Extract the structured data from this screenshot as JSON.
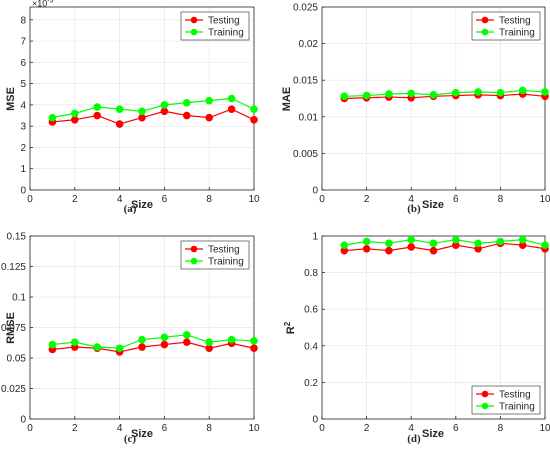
{
  "colors": {
    "testing": "#ff0000",
    "training": "#00ff00",
    "axis": "#262626"
  },
  "chart_data": [
    {
      "type": "line",
      "caption": "(a)",
      "xlabel": "Size",
      "ylabel": "MSE",
      "exponent_label": "×10",
      "exponent_power": "-3",
      "xlim": [
        0,
        10
      ],
      "ylim": [
        0,
        8.6
      ],
      "xticks": [
        0,
        2,
        4,
        6,
        8,
        10
      ],
      "xtick_labels": [
        "0",
        "2",
        "4",
        "6",
        "8",
        "10"
      ],
      "yticks": [
        0,
        1,
        2,
        3,
        4,
        5,
        6,
        7,
        8
      ],
      "ytick_labels": [
        "0",
        "1",
        "2",
        "3",
        "4",
        "5",
        "6",
        "7",
        "8"
      ],
      "legend_position": "top-right",
      "grid": true,
      "x": [
        1,
        2,
        3,
        4,
        5,
        6,
        7,
        8,
        9,
        10
      ],
      "series": [
        {
          "name": "Testing",
          "color": "#ff0000",
          "values": [
            3.2,
            3.3,
            3.5,
            3.1,
            3.4,
            3.7,
            3.5,
            3.4,
            3.8,
            3.3
          ]
        },
        {
          "name": "Training",
          "color": "#00ff00",
          "values": [
            3.4,
            3.6,
            3.9,
            3.8,
            3.7,
            4.0,
            4.1,
            4.2,
            4.3,
            3.8
          ]
        }
      ]
    },
    {
      "type": "line",
      "caption": "(b)",
      "xlabel": "Size",
      "ylabel": "MAE",
      "xlim": [
        0,
        10
      ],
      "ylim": [
        0,
        0.025
      ],
      "xticks": [
        0,
        2,
        4,
        6,
        8,
        10
      ],
      "xtick_labels": [
        "0",
        "2",
        "4",
        "6",
        "8",
        "10"
      ],
      "yticks": [
        0,
        0.005,
        0.01,
        0.015,
        0.02,
        0.025
      ],
      "ytick_labels": [
        "0",
        "0.005",
        "0.01",
        "0.015",
        "0.02",
        "0.025"
      ],
      "legend_position": "top-right",
      "grid": true,
      "x": [
        1,
        2,
        3,
        4,
        5,
        6,
        7,
        8,
        9,
        10
      ],
      "series": [
        {
          "name": "Testing",
          "color": "#ff0000",
          "values": [
            0.0125,
            0.0126,
            0.0127,
            0.0126,
            0.0128,
            0.0129,
            0.013,
            0.0129,
            0.0131,
            0.0128
          ]
        },
        {
          "name": "Training",
          "color": "#00ff00",
          "values": [
            0.0128,
            0.0129,
            0.0131,
            0.0132,
            0.013,
            0.0133,
            0.0134,
            0.0133,
            0.0136,
            0.0134
          ]
        }
      ]
    },
    {
      "type": "line",
      "caption": "(c)",
      "xlabel": "Size",
      "ylabel": "RMSE",
      "xlim": [
        0,
        10
      ],
      "ylim": [
        0,
        0.15
      ],
      "xticks": [
        0,
        2,
        4,
        6,
        8,
        10
      ],
      "xtick_labels": [
        "0",
        "2",
        "4",
        "6",
        "8",
        "10"
      ],
      "yticks": [
        0,
        0.025,
        0.05,
        0.075,
        0.1,
        0.125,
        0.15
      ],
      "ytick_labels": [
        "0",
        "0.025",
        "0.05",
        "0.075",
        "0.1",
        "0.125",
        "0.15"
      ],
      "legend_position": "top-right",
      "grid": true,
      "x": [
        1,
        2,
        3,
        4,
        5,
        6,
        7,
        8,
        9,
        10
      ],
      "series": [
        {
          "name": "Testing",
          "color": "#ff0000",
          "values": [
            0.057,
            0.059,
            0.058,
            0.055,
            0.059,
            0.061,
            0.063,
            0.058,
            0.062,
            0.058
          ]
        },
        {
          "name": "Training",
          "color": "#00ff00",
          "values": [
            0.061,
            0.063,
            0.059,
            0.058,
            0.065,
            0.067,
            0.069,
            0.063,
            0.065,
            0.064
          ]
        }
      ]
    },
    {
      "type": "line",
      "caption": "(d)",
      "xlabel": "Size",
      "ylabel": "R",
      "ylabel_sup": "2",
      "xlim": [
        0,
        10
      ],
      "ylim": [
        0,
        1
      ],
      "xticks": [
        0,
        2,
        4,
        6,
        8,
        10
      ],
      "xtick_labels": [
        "0",
        "2",
        "4",
        "6",
        "8",
        "10"
      ],
      "yticks": [
        0,
        0.2,
        0.4,
        0.6,
        0.8,
        1
      ],
      "ytick_labels": [
        "0",
        "0.2",
        "0.4",
        "0.6",
        "0.8",
        "1"
      ],
      "legend_position": "bottom-right",
      "grid": true,
      "x": [
        1,
        2,
        3,
        4,
        5,
        6,
        7,
        8,
        9,
        10
      ],
      "series": [
        {
          "name": "Testing",
          "color": "#ff0000",
          "values": [
            0.92,
            0.93,
            0.92,
            0.94,
            0.92,
            0.95,
            0.93,
            0.96,
            0.95,
            0.93
          ]
        },
        {
          "name": "Training",
          "color": "#00ff00",
          "values": [
            0.95,
            0.97,
            0.96,
            0.98,
            0.96,
            0.98,
            0.96,
            0.97,
            0.98,
            0.95
          ]
        }
      ]
    }
  ]
}
